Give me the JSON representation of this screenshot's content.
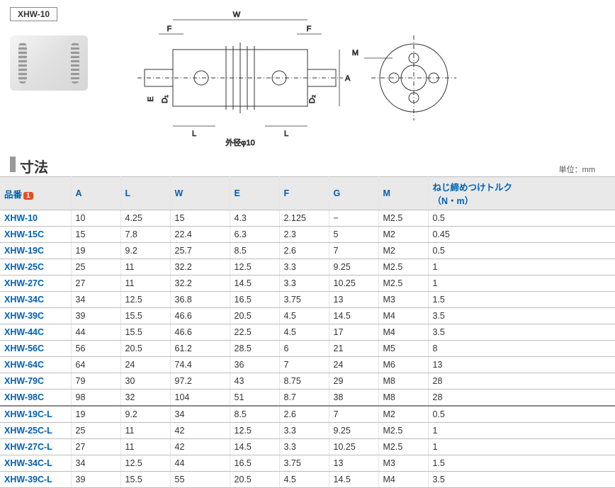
{
  "model_tag": "XHW-10",
  "section_title": "寸法",
  "unit_label": "単位：mm",
  "badge": "1",
  "diagram": {
    "labels": {
      "W": "W",
      "F": "F",
      "E": "E",
      "D1": "D₁",
      "D2": "D₂",
      "A": "A",
      "L": "L",
      "M": "M",
      "od": "外径φ10"
    }
  },
  "columns": [
    {
      "key": "pn",
      "label": "品番"
    },
    {
      "key": "a",
      "label": "A"
    },
    {
      "key": "l",
      "label": "L"
    },
    {
      "key": "w",
      "label": "W"
    },
    {
      "key": "e",
      "label": "E"
    },
    {
      "key": "f",
      "label": "F"
    },
    {
      "key": "g",
      "label": "G"
    },
    {
      "key": "m",
      "label": "M"
    },
    {
      "key": "t",
      "label": "ねじ締めつけトルク\n（N・m）"
    }
  ],
  "rows": [
    {
      "pn": "XHW-10",
      "a": "10",
      "l": "4.25",
      "w": "15",
      "e": "4.3",
      "f": "2.125",
      "g": "−",
      "m": "M2.5",
      "t": "0.5"
    },
    {
      "pn": "XHW-15C",
      "a": "15",
      "l": "7.8",
      "w": "22.4",
      "e": "6.3",
      "f": "2.3",
      "g": "5",
      "m": "M2",
      "t": "0.45"
    },
    {
      "pn": "XHW-19C",
      "a": "19",
      "l": "9.2",
      "w": "25.7",
      "e": "8.5",
      "f": "2.6",
      "g": "7",
      "m": "M2",
      "t": "0.5"
    },
    {
      "pn": "XHW-25C",
      "a": "25",
      "l": "11",
      "w": "32.2",
      "e": "12.5",
      "f": "3.3",
      "g": "9.25",
      "m": "M2.5",
      "t": "1"
    },
    {
      "pn": "XHW-27C",
      "a": "27",
      "l": "11",
      "w": "32.2",
      "e": "14.5",
      "f": "3.3",
      "g": "10.25",
      "m": "M2.5",
      "t": "1"
    },
    {
      "pn": "XHW-34C",
      "a": "34",
      "l": "12.5",
      "w": "36.8",
      "e": "16.5",
      "f": "3.75",
      "g": "13",
      "m": "M3",
      "t": "1.5"
    },
    {
      "pn": "XHW-39C",
      "a": "39",
      "l": "15.5",
      "w": "46.6",
      "e": "20.5",
      "f": "4.5",
      "g": "14.5",
      "m": "M4",
      "t": "3.5"
    },
    {
      "pn": "XHW-44C",
      "a": "44",
      "l": "15.5",
      "w": "46.6",
      "e": "22.5",
      "f": "4.5",
      "g": "17",
      "m": "M4",
      "t": "3.5"
    },
    {
      "pn": "XHW-56C",
      "a": "56",
      "l": "20.5",
      "w": "61.2",
      "e": "28.5",
      "f": "6",
      "g": "21",
      "m": "M5",
      "t": "8"
    },
    {
      "pn": "XHW-64C",
      "a": "64",
      "l": "24",
      "w": "74.4",
      "e": "36",
      "f": "7",
      "g": "24",
      "m": "M6",
      "t": "13"
    },
    {
      "pn": "XHW-79C",
      "a": "79",
      "l": "30",
      "w": "97.2",
      "e": "43",
      "f": "8.75",
      "g": "29",
      "m": "M8",
      "t": "28"
    },
    {
      "pn": "XHW-98C",
      "a": "98",
      "l": "32",
      "w": "104",
      "e": "51",
      "f": "8.7",
      "g": "38",
      "m": "M8",
      "t": "28",
      "group_end": true
    },
    {
      "pn": "XHW-19C-L",
      "a": "19",
      "l": "9.2",
      "w": "34",
      "e": "8.5",
      "f": "2.6",
      "g": "7",
      "m": "M2",
      "t": "0.5"
    },
    {
      "pn": "XHW-25C-L",
      "a": "25",
      "l": "11",
      "w": "42",
      "e": "12.5",
      "f": "3.3",
      "g": "9.25",
      "m": "M2.5",
      "t": "1"
    },
    {
      "pn": "XHW-27C-L",
      "a": "27",
      "l": "11",
      "w": "42",
      "e": "14.5",
      "f": "3.3",
      "g": "10.25",
      "m": "M2.5",
      "t": "1"
    },
    {
      "pn": "XHW-34C-L",
      "a": "34",
      "l": "12.5",
      "w": "44",
      "e": "16.5",
      "f": "3.75",
      "g": "13",
      "m": "M3",
      "t": "1.5"
    },
    {
      "pn": "XHW-39C-L",
      "a": "39",
      "l": "15.5",
      "w": "55",
      "e": "20.5",
      "f": "4.5",
      "g": "14.5",
      "m": "M4",
      "t": "3.5"
    }
  ]
}
